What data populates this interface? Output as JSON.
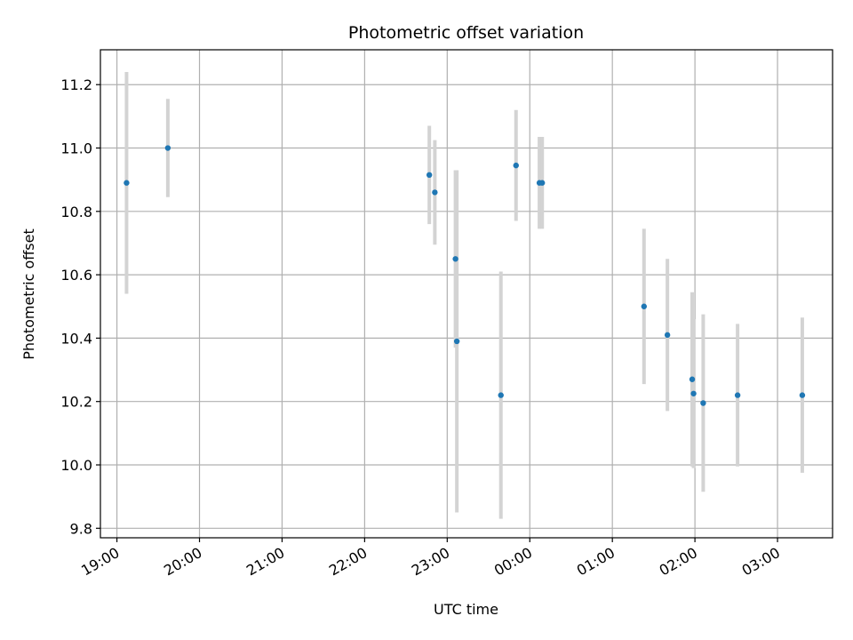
{
  "chart_data": {
    "type": "scatter",
    "title": "Photometric offset variation",
    "xlabel": "UTC time",
    "ylabel": "Photometric offset",
    "x_axis": {
      "kind": "time",
      "range": [
        "18:48",
        "03:40"
      ],
      "ticks": [
        "19:00",
        "20:00",
        "21:00",
        "22:00",
        "23:00",
        "00:00",
        "01:00",
        "02:00",
        "03:00"
      ]
    },
    "y_axis": {
      "range": [
        9.77,
        11.31
      ],
      "ticks": [
        "9.8",
        "10.0",
        "10.2",
        "10.4",
        "10.6",
        "10.8",
        "11.0",
        "11.2"
      ]
    },
    "grid": true,
    "legend": "none",
    "colors": {
      "point": "#1f77b4",
      "errorbar": "#d3d3d3",
      "grid": "#b0b0b0"
    },
    "series": [
      {
        "points": [
          {
            "t": "19:07",
            "y": 10.89,
            "err": 0.35
          },
          {
            "t": "19:37",
            "y": 11.0,
            "err": 0.155
          },
          {
            "t": "22:47",
            "y": 10.915,
            "err": 0.155
          },
          {
            "t": "22:51",
            "y": 10.86,
            "err": 0.165
          },
          {
            "t": "23:06",
            "y": 10.65,
            "err": 0.28
          },
          {
            "t": "23:07",
            "y": 10.39,
            "err": 0.54
          },
          {
            "t": "23:39",
            "y": 10.22,
            "err": 0.39
          },
          {
            "t": "23:50",
            "y": 10.945,
            "err": 0.175
          },
          {
            "t": "00:07",
            "y": 10.89,
            "err": 0.145
          },
          {
            "t": "00:09",
            "y": 10.89,
            "err": 0.145
          },
          {
            "t": "01:23",
            "y": 10.5,
            "err": 0.245
          },
          {
            "t": "01:40",
            "y": 10.41,
            "err": 0.24
          },
          {
            "t": "01:58",
            "y": 10.27,
            "err": 0.275
          },
          {
            "t": "01:59",
            "y": 10.225,
            "err": 0.235
          },
          {
            "t": "02:06",
            "y": 10.195,
            "err": 0.28
          },
          {
            "t": "02:31",
            "y": 10.22,
            "err": 0.225
          },
          {
            "t": "03:18",
            "y": 10.22,
            "err": 0.245
          }
        ]
      }
    ]
  }
}
